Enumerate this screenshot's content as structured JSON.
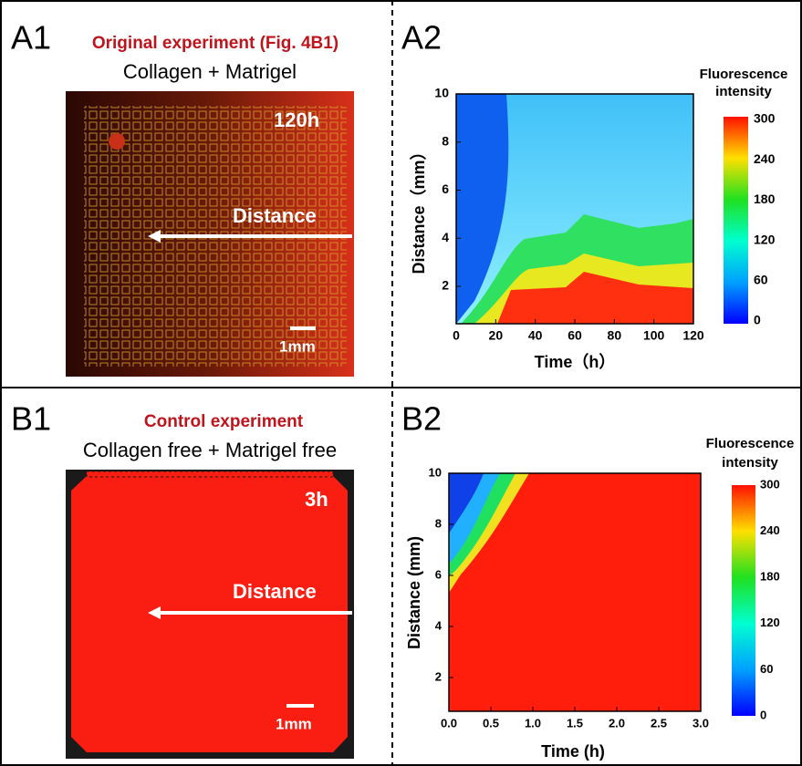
{
  "panels": [
    {
      "label": "A1",
      "title": "Original experiment (Fig. 4B1)",
      "subtitle": "Collagen + Matrigel",
      "time_label": "120h",
      "arrow_label": "Distance",
      "scale_label": "1mm"
    },
    {
      "label": "A2",
      "colorbar_title": [
        "Fluorescence",
        "intensity"
      ],
      "colorbar_ticks": [
        "0",
        "60",
        "120",
        "180",
        "240",
        "300"
      ],
      "x_label": "Time（h）",
      "y_label": "Distance（mm）",
      "xticks": [
        "0",
        "20",
        "40",
        "60",
        "80",
        "100",
        "120"
      ],
      "yticks": [
        "2",
        "4",
        "6",
        "8",
        "10"
      ]
    },
    {
      "label": "B1",
      "title": "Control experiment",
      "subtitle": "Collagen free + Matrigel free",
      "time_label": "3h",
      "arrow_label": "Distance",
      "scale_label": "1mm"
    },
    {
      "label": "B2",
      "colorbar_title": [
        "Fluorescence",
        "intensity"
      ],
      "colorbar_ticks": [
        "0",
        "60",
        "120",
        "180",
        "240",
        "300"
      ],
      "x_label": "Time (h)",
      "y_label": "Distance (mm)",
      "xticks": [
        "0.0",
        "0.5",
        "1.0",
        "1.5",
        "2.0",
        "2.5",
        "3.0"
      ],
      "yticks": [
        "2",
        "4",
        "6",
        "8",
        "10"
      ]
    }
  ]
}
